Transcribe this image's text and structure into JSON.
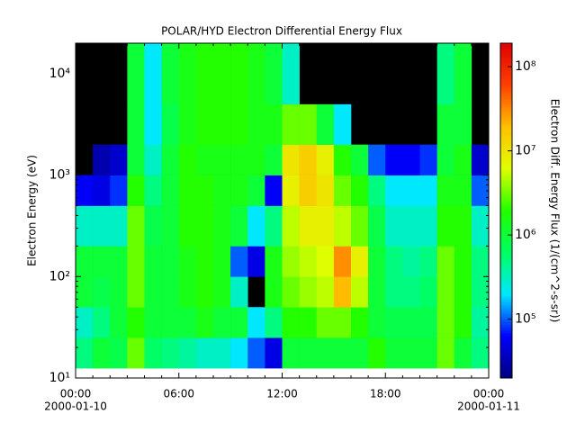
{
  "chart_data": {
    "type": "spectrogram",
    "title": "POLAR/HYD  Electron Differential Energy Flux",
    "y_label": "Electron Energy (eV)",
    "colorbar_label": "Electron Diff. Energy Flux (1/(cm^2-s-sr))",
    "xlim": [
      0,
      24
    ],
    "xticks": [
      {
        "value": 0,
        "label": "00:00"
      },
      {
        "value": 6,
        "label": "06:00"
      },
      {
        "value": 12,
        "label": "12:00"
      },
      {
        "value": 18,
        "label": "18:00"
      },
      {
        "value": 24,
        "label": "00:00"
      }
    ],
    "xtick_sublabels": [
      "2000-01-10",
      null,
      null,
      null,
      "2000-01-11"
    ],
    "ylim": [
      10,
      20000
    ],
    "y_log": true,
    "yticks": [
      {
        "value": 10,
        "label": "10¹"
      },
      {
        "value": 100,
        "label": "10²"
      },
      {
        "value": 1000,
        "label": "10³"
      },
      {
        "value": 10000,
        "label": "10⁴"
      }
    ],
    "zlim": [
      20000,
      190000000
    ],
    "z_log": true,
    "zticks": [
      {
        "value": 100000,
        "label": "10⁵"
      },
      {
        "value": 1000000,
        "label": "10⁶"
      },
      {
        "value": 10000000,
        "label": "10⁷"
      },
      {
        "value": 100000000,
        "label": "10⁸"
      }
    ],
    "colormap": [
      "#00007f",
      "#0000ff",
      "#00e8ff",
      "#00ff60",
      "#20ff00",
      "#e0ff00",
      "#ffc000",
      "#ff4000",
      "#e00000"
    ],
    "no_data_color": "#000000",
    "time_bins": [
      0,
      1,
      2,
      3,
      4,
      5,
      6,
      7,
      8,
      9,
      10,
      11,
      12,
      13,
      14,
      15,
      16,
      17,
      18,
      19,
      20,
      21,
      22,
      23,
      24
    ],
    "energy_bins": [
      12.5,
      25,
      50,
      100,
      200,
      500,
      1000,
      2000,
      5000,
      20000
    ],
    "z": [
      [
        500000,
        300000,
        1000000,
        1000000,
        300000,
        60000,
        null,
        null,
        null
      ],
      [
        1000000,
        500000,
        800000,
        1000000,
        300000,
        50000,
        30000,
        null,
        null
      ],
      [
        800000,
        1000000,
        1000000,
        1000000,
        300000,
        80000,
        40000,
        null,
        null
      ],
      [
        3000000,
        2000000,
        3000000,
        3000000,
        3000000,
        2000000,
        1000000,
        1000000,
        1000000
      ],
      [
        600000,
        1000000,
        1000000,
        1000000,
        800000,
        500000,
        300000,
        200000,
        200000
      ],
      [
        500000,
        1000000,
        1000000,
        1000000,
        1000000,
        1000000,
        1000000,
        800000,
        1000000
      ],
      [
        400000,
        1000000,
        1500000,
        1500000,
        2000000,
        2000000,
        2000000,
        1500000,
        1500000
      ],
      [
        300000,
        1500000,
        2000000,
        2000000,
        2000000,
        2000000,
        1500000,
        2000000,
        2000000
      ],
      [
        300000,
        1000000,
        1500000,
        1500000,
        1500000,
        1500000,
        1500000,
        2000000,
        2000000
      ],
      [
        200000,
        1000000,
        300000,
        100000,
        1000000,
        1500000,
        1500000,
        2000000,
        2000000
      ],
      [
        100000,
        200000,
        null,
        50000,
        200000,
        1000000,
        1500000,
        1500000,
        1500000
      ],
      [
        50000,
        500000,
        1500000,
        1500000,
        500000,
        60000,
        1000000,
        1500000,
        1000000
      ],
      [
        1000000,
        2000000,
        3000000,
        4000000,
        5000000,
        8000000,
        10000000,
        3000000,
        300000
      ],
      [
        1000000,
        2000000,
        4000000,
        5000000,
        8000000,
        15000000,
        15000000,
        3000000,
        null
      ],
      [
        1000000,
        3000000,
        5000000,
        6000000,
        8000000,
        10000000,
        8000000,
        1000000,
        null
      ],
      [
        1000000,
        3000000,
        20000000,
        30000000,
        5000000,
        3000000,
        2000000,
        200000,
        null
      ],
      [
        1000000,
        2000000,
        5000000,
        8000000,
        3000000,
        2000000,
        1000000,
        null,
        null
      ],
      [
        2000000,
        1000000,
        1000000,
        1000000,
        800000,
        500000,
        100000,
        null,
        null
      ],
      [
        1000000,
        800000,
        500000,
        500000,
        300000,
        200000,
        60000,
        null,
        null
      ],
      [
        1000000,
        800000,
        500000,
        400000,
        300000,
        200000,
        60000,
        null,
        null
      ],
      [
        1000000,
        800000,
        600000,
        500000,
        300000,
        200000,
        80000,
        null,
        null
      ],
      [
        3000000,
        3000000,
        3000000,
        3000000,
        2000000,
        1500000,
        1000000,
        1000000,
        500000
      ],
      [
        1000000,
        2000000,
        2000000,
        2000000,
        2000000,
        1500000,
        1500000,
        1000000,
        1000000
      ],
      [
        500000,
        400000,
        500000,
        500000,
        300000,
        100000,
        40000,
        null,
        null
      ]
    ]
  }
}
